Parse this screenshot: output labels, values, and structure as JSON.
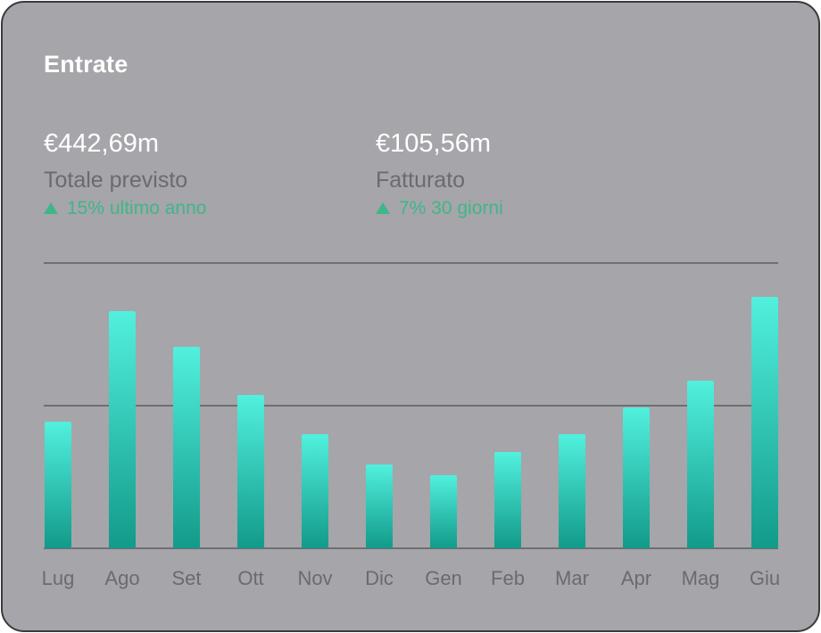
{
  "card": {
    "title": "Entrate"
  },
  "metrics": [
    {
      "value": "€442,69m",
      "label": "Totale previsto",
      "change": "15% ultimo anno",
      "trend": "up"
    },
    {
      "value": "€105,56m",
      "label": "Fatturato",
      "change": "7% 30 giorni",
      "trend": "up"
    }
  ],
  "colors": {
    "card_background": "#a6a5a9",
    "bar_top": "#52f0de",
    "bar_bottom": "#129a8a",
    "positive": "#3fb68a",
    "gridline": "#6f6e73",
    "label": "#6b6a70"
  },
  "chart_data": {
    "type": "bar",
    "title": "",
    "xlabel": "",
    "ylabel": "",
    "categories": [
      "Lug",
      "Ago",
      "Set",
      "Ott",
      "Nov",
      "Dic",
      "Gen",
      "Feb",
      "Mar",
      "Apr",
      "Mag",
      "Giu"
    ],
    "values": [
      142,
      266,
      226,
      172,
      128,
      94,
      82,
      108,
      128,
      158,
      188,
      282
    ],
    "ylim": [
      0,
      320
    ],
    "gridlines": [
      0,
      160,
      320
    ],
    "grid": true,
    "legend": "none"
  }
}
